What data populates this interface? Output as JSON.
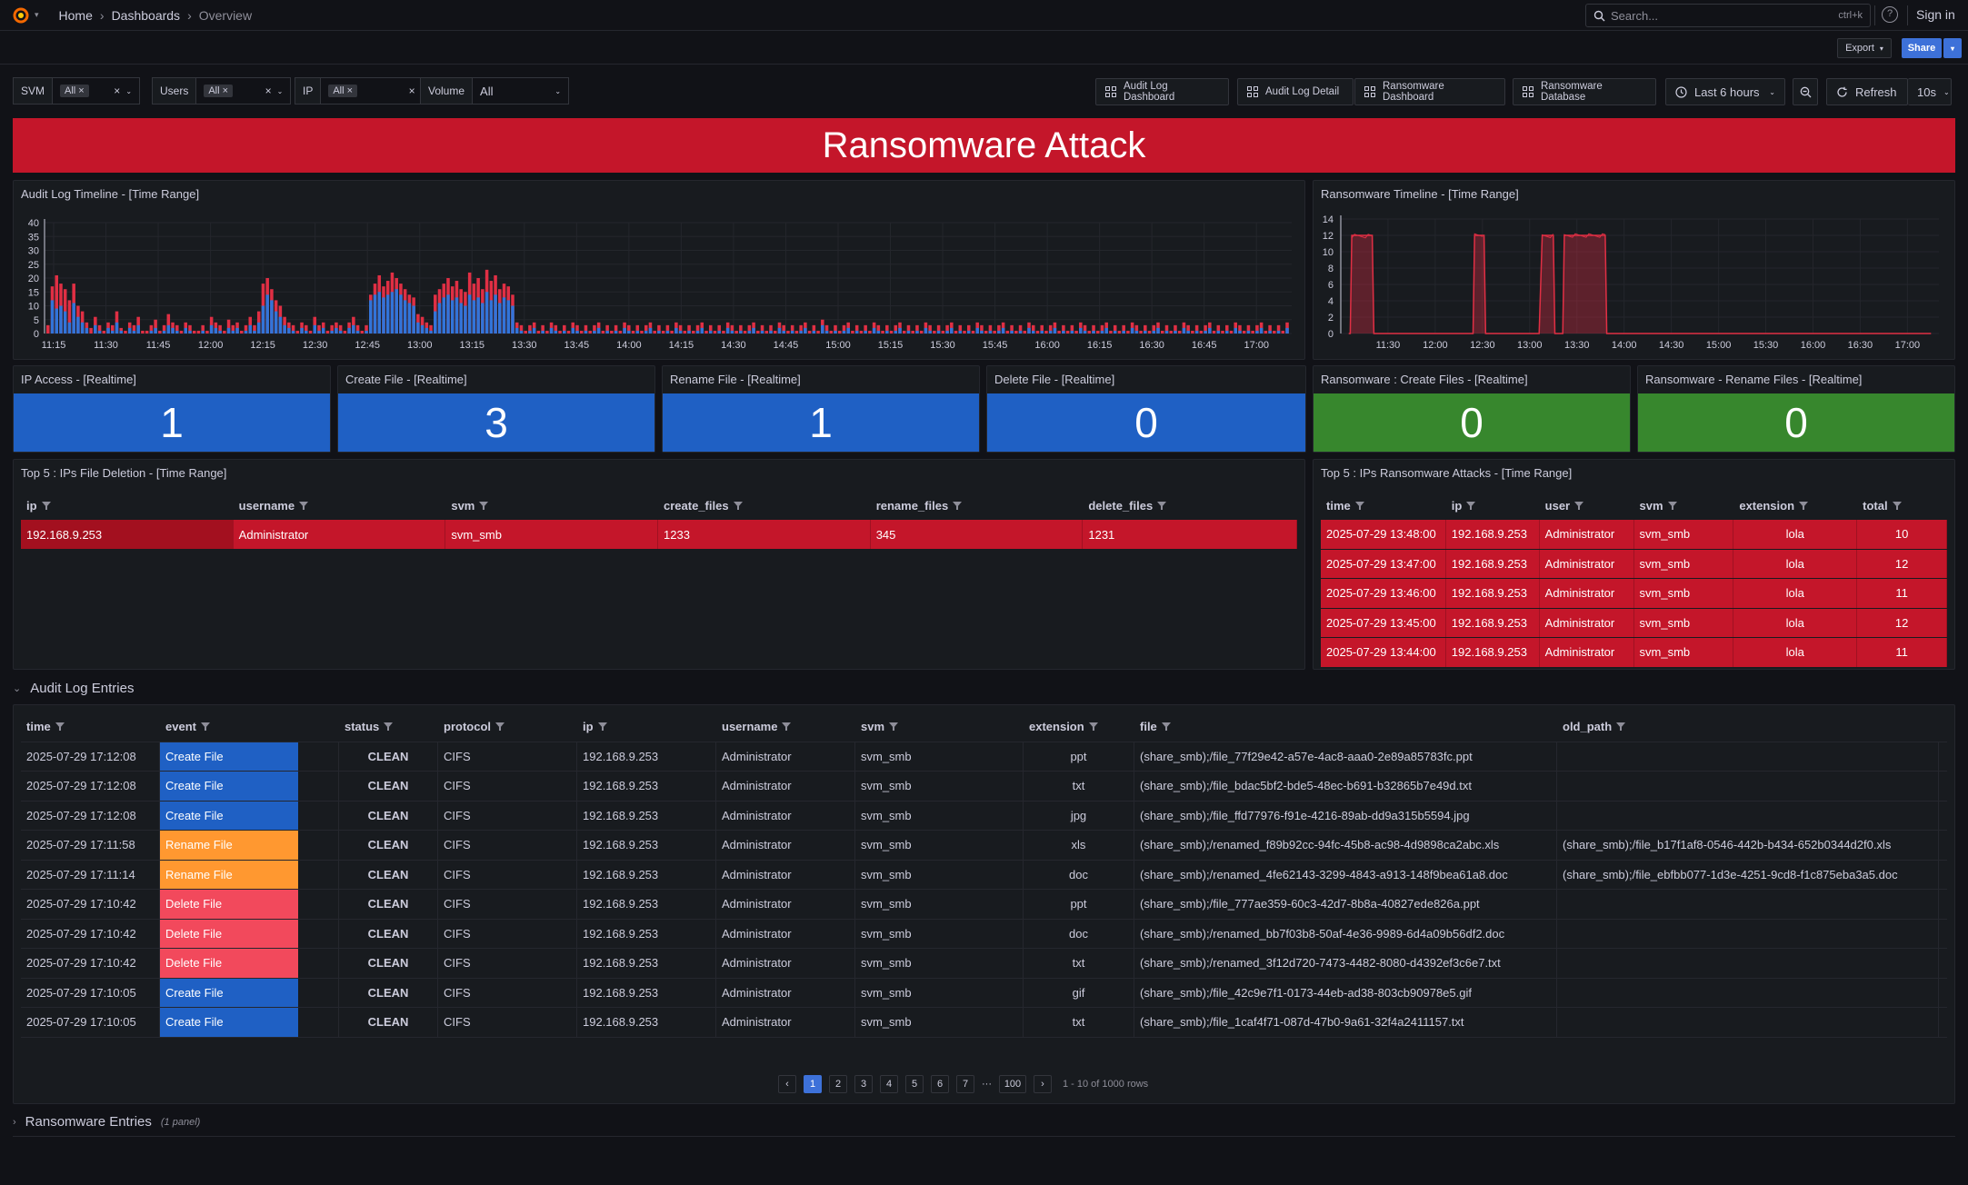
{
  "topbar": {
    "crumbs": [
      "Home",
      "Dashboards",
      "Overview"
    ],
    "search_placeholder": "Search...",
    "search_shortcut": "ctrl+k",
    "sign_in": "Sign in"
  },
  "subbar": {
    "export": "Export",
    "share": "Share"
  },
  "variables": [
    {
      "label": "SVM",
      "value": "All"
    },
    {
      "label": "Users",
      "value": "All"
    },
    {
      "label": "IP",
      "value": "All"
    },
    {
      "label": "Volume",
      "value": "All"
    }
  ],
  "nav_links": [
    "Audit Log Dashboard",
    "Audit Log Detail",
    "Ransomware Dashboard",
    "Ransomware Database"
  ],
  "time_picker": {
    "range": "Last 6 hours",
    "refresh": "Refresh",
    "interval": "10s"
  },
  "banner": "Ransomware Attack",
  "colors": {
    "accent_red": "#c4162a",
    "stat_blue": "#1f60c4",
    "stat_green": "#37872d",
    "create": "#1f60c4",
    "rename": "#ff9830",
    "delete": "#f2495c",
    "series_blue": "#3274d9",
    "series_red": "#e02f44"
  },
  "audit_timeline": {
    "title": "Audit Log Timeline - [Time Range]",
    "chart_data": {
      "type": "bar",
      "x_ticks": [
        "11:15",
        "11:30",
        "11:45",
        "12:00",
        "12:15",
        "12:30",
        "12:45",
        "13:00",
        "13:15",
        "13:30",
        "13:45",
        "14:00",
        "14:15",
        "14:30",
        "14:45",
        "15:00",
        "15:15",
        "15:30",
        "15:45",
        "16:00",
        "16:15",
        "16:30",
        "16:45",
        "17:00"
      ],
      "y_ticks": [
        0,
        5,
        10,
        15,
        20,
        25,
        30,
        35,
        40
      ],
      "ylim": [
        0,
        40
      ],
      "series": [
        {
          "color": "#3274d9",
          "values": [
            0,
            12,
            9,
            10,
            8,
            4,
            11,
            6,
            4,
            2,
            0,
            3,
            1,
            0,
            2,
            1,
            4,
            1,
            0,
            2,
            1,
            3,
            0,
            0,
            1,
            2,
            0,
            1,
            3,
            2,
            1,
            0,
            2,
            1,
            0,
            0,
            1,
            0,
            3,
            2,
            1,
            0,
            2,
            1,
            2,
            0,
            1,
            3,
            1,
            4,
            10,
            14,
            12,
            8,
            6,
            3,
            2,
            1,
            0,
            2,
            1,
            0,
            3,
            1,
            2,
            0,
            1,
            2,
            1,
            0,
            2,
            3,
            1,
            0,
            1,
            12,
            14,
            15,
            13,
            14,
            15,
            16,
            14,
            12,
            11,
            10,
            4,
            3,
            2,
            1,
            8,
            11,
            13,
            14,
            12,
            13,
            11,
            10,
            14,
            12,
            13,
            11,
            15,
            12,
            14,
            11,
            13,
            12,
            10,
            2,
            1,
            0,
            1,
            2,
            0,
            1,
            0,
            2,
            1,
            0,
            1,
            0,
            2,
            1,
            0,
            1,
            0,
            1,
            2,
            0,
            1,
            0,
            1,
            0,
            2,
            1,
            0,
            1,
            0,
            1,
            2,
            0,
            1,
            0,
            1,
            0,
            2,
            1,
            0,
            1,
            0,
            1,
            2,
            0,
            1,
            0,
            1,
            0,
            2,
            1,
            0,
            1,
            0,
            1,
            2,
            0,
            1,
            0,
            1,
            0,
            2,
            1,
            0,
            1,
            0,
            1,
            2,
            0,
            1,
            0,
            3,
            1,
            0,
            1,
            0,
            1,
            2,
            0,
            1,
            0,
            1,
            0,
            2,
            1,
            0,
            1,
            0,
            1,
            2,
            0,
            1,
            0,
            1,
            0,
            2,
            1,
            0,
            1,
            0,
            1,
            2,
            0,
            1,
            0,
            1,
            0,
            2,
            1,
            0,
            1,
            0,
            1,
            2,
            0,
            1,
            0,
            1,
            0,
            2,
            1,
            0,
            1,
            0,
            1,
            2,
            0,
            1,
            0,
            1,
            0,
            2,
            1,
            0,
            1,
            0,
            1,
            2,
            0,
            1,
            0,
            1,
            0,
            2,
            1,
            0,
            1,
            0,
            1,
            2,
            0,
            1,
            0,
            1,
            0,
            2,
            1,
            0,
            1,
            0,
            1,
            2,
            0,
            1,
            0,
            1,
            0,
            2,
            1,
            0,
            1,
            0,
            1,
            2,
            0,
            1,
            0,
            1,
            0,
            2
          ]
        },
        {
          "color": "#e02f44",
          "values": [
            3,
            17,
            21,
            18,
            16,
            12,
            18,
            10,
            8,
            4,
            2,
            6,
            3,
            1,
            4,
            3,
            8,
            2,
            1,
            4,
            3,
            6,
            1,
            1,
            3,
            5,
            1,
            3,
            7,
            4,
            3,
            1,
            4,
            3,
            1,
            1,
            3,
            1,
            6,
            4,
            3,
            1,
            5,
            3,
            4,
            1,
            3,
            6,
            3,
            8,
            18,
            20,
            16,
            12,
            10,
            6,
            4,
            3,
            1,
            4,
            3,
            1,
            6,
            3,
            4,
            1,
            3,
            4,
            3,
            1,
            4,
            6,
            3,
            1,
            3,
            14,
            18,
            21,
            17,
            19,
            22,
            20,
            18,
            16,
            14,
            13,
            7,
            6,
            4,
            3,
            14,
            16,
            18,
            20,
            17,
            19,
            16,
            15,
            22,
            18,
            20,
            16,
            23,
            19,
            21,
            16,
            18,
            17,
            14,
            4,
            3,
            1,
            3,
            4,
            1,
            3,
            1,
            4,
            3,
            1,
            3,
            1,
            4,
            3,
            1,
            3,
            1,
            3,
            4,
            1,
            3,
            1,
            3,
            1,
            4,
            3,
            1,
            3,
            1,
            3,
            4,
            1,
            3,
            1,
            3,
            1,
            4,
            3,
            1,
            3,
            1,
            3,
            4,
            1,
            3,
            1,
            3,
            1,
            4,
            3,
            1,
            3,
            1,
            3,
            4,
            1,
            3,
            1,
            3,
            1,
            4,
            3,
            1,
            3,
            1,
            3,
            4,
            1,
            3,
            1,
            5,
            3,
            1,
            3,
            1,
            3,
            4,
            1,
            3,
            1,
            3,
            1,
            4,
            3,
            1,
            3,
            1,
            3,
            4,
            1,
            3,
            1,
            3,
            1,
            4,
            3,
            1,
            3,
            1,
            3,
            4,
            1,
            3,
            1,
            3,
            1,
            4,
            3,
            1,
            3,
            1,
            3,
            4,
            1,
            3,
            1,
            3,
            1,
            4,
            3,
            1,
            3,
            1,
            3,
            4,
            1,
            3,
            1,
            3,
            1,
            4,
            3,
            1,
            3,
            1,
            3,
            4,
            1,
            3,
            1,
            3,
            1,
            4,
            3,
            1,
            3,
            1,
            3,
            4,
            1,
            3,
            1,
            3,
            1,
            4,
            3,
            1,
            3,
            1,
            3,
            4,
            1,
            3,
            1,
            3,
            1,
            4,
            3,
            1,
            3,
            1,
            3,
            4,
            1,
            3,
            1,
            3,
            1,
            4
          ]
        }
      ]
    }
  },
  "ransom_timeline": {
    "title": "Ransomware Timeline - [Time Range]",
    "chart_data": {
      "type": "area",
      "x_ticks": [
        "11:30",
        "12:00",
        "12:30",
        "13:00",
        "13:30",
        "14:00",
        "14:30",
        "15:00",
        "15:30",
        "16:00",
        "16:30",
        "17:00"
      ],
      "y_ticks": [
        0,
        2,
        4,
        6,
        8,
        10,
        12,
        14
      ],
      "ylim": [
        0,
        14
      ],
      "color": "#e02f44",
      "x": [
        "11:05",
        "11:06",
        "11:07",
        "11:20",
        "11:21",
        "11:22",
        "12:22",
        "12:24",
        "12:25",
        "12:31",
        "12:32",
        "12:33",
        "13:05",
        "13:06",
        "13:08",
        "13:15",
        "13:16",
        "13:17",
        "13:20",
        "13:21",
        "13:22",
        "13:48",
        "13:49",
        "13:50",
        "17:15"
      ],
      "values": [
        0,
        0,
        12,
        12,
        0,
        0,
        0,
        0,
        12,
        12,
        0,
        0,
        0,
        0,
        12,
        12,
        0,
        0,
        0,
        0,
        12,
        12,
        0,
        0,
        0
      ]
    }
  },
  "stats": [
    {
      "title": "IP Access - [Realtime]",
      "value": "1"
    },
    {
      "title": "Create File - [Realtime]",
      "value": "3"
    },
    {
      "title": "Rename File - [Realtime]",
      "value": "1"
    },
    {
      "title": "Delete File - [Realtime]",
      "value": "0"
    },
    {
      "title": "Ransomware : Create Files - [Realtime]",
      "value": "0"
    },
    {
      "title": "Ransomware - Rename Files - [Realtime]",
      "value": "0"
    }
  ],
  "top_deletion": {
    "title": "Top 5 : IPs File Deletion - [Time Range]",
    "columns": [
      "ip",
      "username",
      "svm",
      "create_files",
      "rename_files",
      "delete_files"
    ],
    "rows": [
      [
        "192.168.9.253",
        "Administrator",
        "svm_smb",
        "1233",
        "345",
        "1231"
      ]
    ]
  },
  "top_ransom": {
    "title": "Top 5 : IPs Ransomware Attacks - [Time Range]",
    "columns": [
      "time",
      "ip",
      "user",
      "svm",
      "extension",
      "total"
    ],
    "rows": [
      [
        "2025-07-29 13:48:00",
        "192.168.9.253",
        "Administrator",
        "svm_smb",
        "lola",
        "10"
      ],
      [
        "2025-07-29 13:47:00",
        "192.168.9.253",
        "Administrator",
        "svm_smb",
        "lola",
        "12"
      ],
      [
        "2025-07-29 13:46:00",
        "192.168.9.253",
        "Administrator",
        "svm_smb",
        "lola",
        "11"
      ],
      [
        "2025-07-29 13:45:00",
        "192.168.9.253",
        "Administrator",
        "svm_smb",
        "lola",
        "12"
      ],
      [
        "2025-07-29 13:44:00",
        "192.168.9.253",
        "Administrator",
        "svm_smb",
        "lola",
        "11"
      ]
    ]
  },
  "audit_section": {
    "title": "Audit Log Entries"
  },
  "audit_entries": {
    "columns": [
      "time",
      "event",
      "status",
      "protocol",
      "ip",
      "username",
      "svm",
      "extension",
      "file",
      "old_path"
    ],
    "rows": [
      [
        "2025-07-29 17:12:08",
        "Create File",
        "CLEAN",
        "CIFS",
        "192.168.9.253",
        "Administrator",
        "svm_smb",
        "ppt",
        "(share_smb);/file_77f29e42-a57e-4ac8-aaa0-2e89a85783fc.ppt",
        ""
      ],
      [
        "2025-07-29 17:12:08",
        "Create File",
        "CLEAN",
        "CIFS",
        "192.168.9.253",
        "Administrator",
        "svm_smb",
        "txt",
        "(share_smb);/file_bdac5bf2-bde5-48ec-b691-b32865b7e49d.txt",
        ""
      ],
      [
        "2025-07-29 17:12:08",
        "Create File",
        "CLEAN",
        "CIFS",
        "192.168.9.253",
        "Administrator",
        "svm_smb",
        "jpg",
        "(share_smb);/file_ffd77976-f91e-4216-89ab-dd9a315b5594.jpg",
        ""
      ],
      [
        "2025-07-29 17:11:58",
        "Rename File",
        "CLEAN",
        "CIFS",
        "192.168.9.253",
        "Administrator",
        "svm_smb",
        "xls",
        "(share_smb);/renamed_f89b92cc-94fc-45b8-ac98-4d9898ca2abc.xls",
        "(share_smb);/file_b17f1af8-0546-442b-b434-652b0344d2f0.xls"
      ],
      [
        "2025-07-29 17:11:14",
        "Rename File",
        "CLEAN",
        "CIFS",
        "192.168.9.253",
        "Administrator",
        "svm_smb",
        "doc",
        "(share_smb);/renamed_4fe62143-3299-4843-a913-148f9bea61a8.doc",
        "(share_smb);/file_ebfbb077-1d3e-4251-9cd8-f1c875eba3a5.doc"
      ],
      [
        "2025-07-29 17:10:42",
        "Delete File",
        "CLEAN",
        "CIFS",
        "192.168.9.253",
        "Administrator",
        "svm_smb",
        "ppt",
        "(share_smb);/file_777ae359-60c3-42d7-8b8a-40827ede826a.ppt",
        ""
      ],
      [
        "2025-07-29 17:10:42",
        "Delete File",
        "CLEAN",
        "CIFS",
        "192.168.9.253",
        "Administrator",
        "svm_smb",
        "doc",
        "(share_smb);/renamed_bb7f03b8-50af-4e36-9989-6d4a09b56df2.doc",
        ""
      ],
      [
        "2025-07-29 17:10:42",
        "Delete File",
        "CLEAN",
        "CIFS",
        "192.168.9.253",
        "Administrator",
        "svm_smb",
        "txt",
        "(share_smb);/renamed_3f12d720-7473-4482-8080-d4392ef3c6e7.txt",
        ""
      ],
      [
        "2025-07-29 17:10:05",
        "Create File",
        "CLEAN",
        "CIFS",
        "192.168.9.253",
        "Administrator",
        "svm_smb",
        "gif",
        "(share_smb);/file_42c9e7f1-0173-44eb-ad38-803cb90978e5.gif",
        ""
      ],
      [
        "2025-07-29 17:10:05",
        "Create File",
        "CLEAN",
        "CIFS",
        "192.168.9.253",
        "Administrator",
        "svm_smb",
        "txt",
        "(share_smb);/file_1caf4f71-087d-47b0-9a61-32f4a2411157.txt",
        ""
      ]
    ]
  },
  "pagination": {
    "pages": [
      "1",
      "2",
      "3",
      "4",
      "5",
      "6",
      "7"
    ],
    "ellipsis": "···",
    "last": "100",
    "summary": "1 - 10 of 1000 rows",
    "current": "1"
  },
  "ransom_section": {
    "title": "Ransomware Entries",
    "note": "(1 panel)"
  }
}
